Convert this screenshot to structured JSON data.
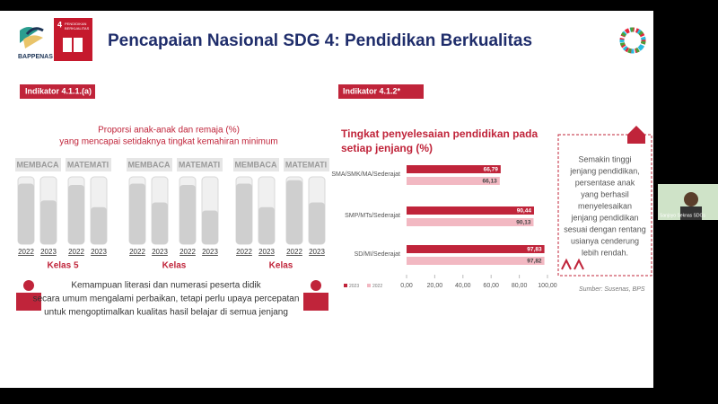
{
  "screen": {
    "participant": "Sanjoyo Seknas SDGs"
  },
  "slide": {
    "logo": "BAPPENAS",
    "sdg_badge": {
      "number": "4",
      "label": [
        "PENDIDIKAN",
        "BERKUALITAS"
      ]
    },
    "title": "Pencapaian Nasional SDG 4: Pendidikan Berkualitas",
    "left_indicator": "Indikator 4.1.1.(a)",
    "right_indicator": "Indikator 4.1.2*",
    "summary": [
      "Kemampuan literasi dan numerasi peserta didik",
      "secara umum mengalami perbaikan, tetapi perlu upaya percepatan",
      "untuk mengoptimalkan kualitas hasil belajar di semua jenjang"
    ],
    "note": [
      "Semakin tinggi",
      "jenjang pendidikan,",
      "persentase anak",
      "yang berhasil",
      "menyelesaikan",
      "jenjang pendidikan",
      "sesuai dengan rentang",
      "usianya cenderung",
      "lebih rendah."
    ],
    "source": "Sumber: Susenas, BPS"
  },
  "chart_data": [
    {
      "type": "grouped-bar",
      "title": [
        "Proporsi anak-anak dan remaja (%)",
        "yang mencapai setidaknya tingkat kemahiran minimum"
      ],
      "ylim": [
        0,
        100
      ],
      "groups": [
        {
          "label": "Kelas 5",
          "subjects": [
            {
              "name": "MEMBACA",
              "categories": [
                "2022",
                "2023"
              ],
              "values": [
                90,
                65
              ]
            },
            {
              "name": "MATEMATI",
              "categories": [
                "2022",
                "2023"
              ],
              "values": [
                88,
                55
              ]
            }
          ]
        },
        {
          "label": "Kelas",
          "subjects": [
            {
              "name": "MEMBACA",
              "categories": [
                "2022",
                "2023"
              ],
              "values": [
                90,
                62
              ]
            },
            {
              "name": "MATEMATI",
              "categories": [
                "2022",
                "2023"
              ],
              "values": [
                88,
                50
              ]
            }
          ]
        },
        {
          "label": "Kelas",
          "subjects": [
            {
              "name": "MEMBACA",
              "categories": [
                "2022",
                "2023"
              ],
              "values": [
                90,
                55
              ]
            },
            {
              "name": "MATEMATI",
              "categories": [
                "2022",
                "2023"
              ],
              "values": [
                95,
                62
              ]
            }
          ]
        }
      ]
    },
    {
      "type": "hbar",
      "title": [
        "Tingkat penyelesaian pendidikan pada",
        "setiap jenjang (%)"
      ],
      "categories": [
        "SMA/SMK/MA/Sederajat",
        "SMP/MTs/Sederajat",
        "SD/MI/Sederajat"
      ],
      "series": [
        {
          "name": "2023",
          "color": "#c0243a",
          "values": [
            66.79,
            90.44,
            97.83
          ],
          "value_labels": [
            "66,79",
            "90,44",
            "97,83"
          ]
        },
        {
          "name": "2022",
          "color": "#f2b8c2",
          "values": [
            66.13,
            90.13,
            97.82
          ],
          "value_labels": [
            "66,13",
            "90,13",
            "97,82"
          ]
        }
      ],
      "xlim": [
        0,
        100
      ],
      "xticks": [
        {
          "value": 0,
          "label": "0,00"
        },
        {
          "value": 20,
          "label": "20,00"
        },
        {
          "value": 40,
          "label": "40,00"
        },
        {
          "value": 60,
          "label": "60,00"
        },
        {
          "value": 80,
          "label": "80,00"
        },
        {
          "value": 100,
          "label": "100,00"
        }
      ],
      "legend": "bottom-left"
    }
  ]
}
